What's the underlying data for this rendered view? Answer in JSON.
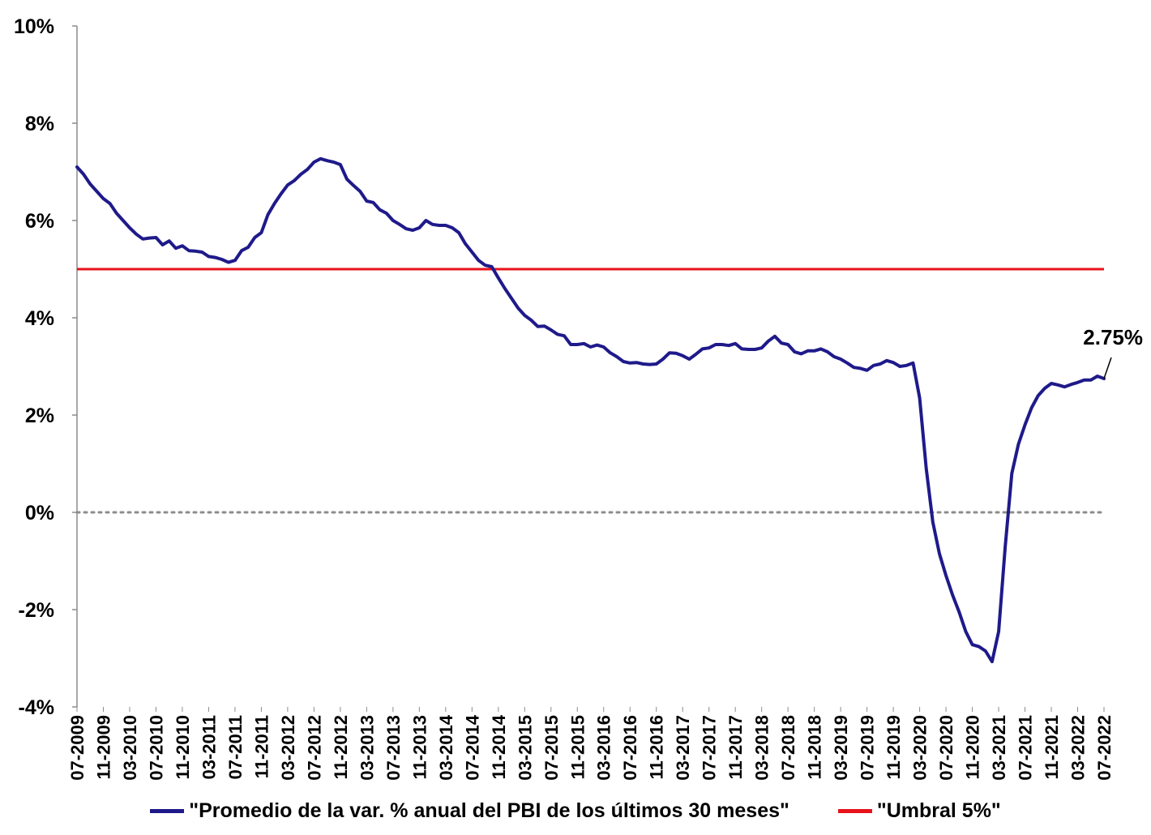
{
  "chart_data": {
    "type": "line",
    "ylim": [
      -4,
      10
    ],
    "yticks": [
      "10%",
      "8%",
      "6%",
      "4%",
      "2%",
      "0%",
      "-2%",
      "-4%"
    ],
    "ytick_values": [
      10,
      8,
      6,
      4,
      2,
      0,
      -2,
      -4
    ],
    "xlabels": [
      "07-2009",
      "11-2009",
      "03-2010",
      "07-2010",
      "11-2010",
      "03-2011",
      "07-2011",
      "11-2011",
      "03-2012",
      "07-2012",
      "11-2012",
      "03-2013",
      "07-2013",
      "11-2013",
      "03-2014",
      "07-2014",
      "11-2014",
      "03-2015",
      "07-2015",
      "11-2015",
      "03-2016",
      "07-2016",
      "11-2016",
      "03-2017",
      "07-2017",
      "11-2017",
      "03-2018",
      "07-2018",
      "11-2018",
      "03-2019",
      "07-2019",
      "11-2019",
      "03-2020",
      "07-2020",
      "11-2020",
      "03-2021",
      "07-2021",
      "11-2021",
      "03-2022",
      "07-2022"
    ],
    "series": [
      {
        "name": "\"Promedio de la var. % anual del PBI de los últimos 30 meses\"",
        "color": "#1f1a8a",
        "values": [
          7.1,
          6.95,
          6.75,
          6.6,
          6.45,
          6.35,
          6.15,
          6.0,
          5.85,
          5.72,
          5.62,
          5.64,
          5.65,
          5.5,
          5.58,
          5.43,
          5.48,
          5.38,
          5.37,
          5.35,
          5.26,
          5.24,
          5.2,
          5.14,
          5.18,
          5.38,
          5.45,
          5.65,
          5.75,
          6.12,
          6.35,
          6.55,
          6.73,
          6.82,
          6.95,
          7.05,
          7.2,
          7.27,
          7.23,
          7.2,
          7.15,
          6.85,
          6.72,
          6.6,
          6.4,
          6.37,
          6.22,
          6.15,
          6.0,
          5.92,
          5.83,
          5.8,
          5.85,
          6.0,
          5.92,
          5.9,
          5.9,
          5.85,
          5.75,
          5.52,
          5.35,
          5.18,
          5.08,
          5.05,
          4.82,
          4.6,
          4.4,
          4.2,
          4.05,
          3.95,
          3.82,
          3.83,
          3.75,
          3.66,
          3.63,
          3.45,
          3.45,
          3.47,
          3.4,
          3.44,
          3.4,
          3.28,
          3.2,
          3.1,
          3.07,
          3.08,
          3.05,
          3.04,
          3.05,
          3.15,
          3.28,
          3.27,
          3.22,
          3.15,
          3.25,
          3.36,
          3.38,
          3.45,
          3.45,
          3.43,
          3.47,
          3.36,
          3.35,
          3.35,
          3.38,
          3.52,
          3.62,
          3.48,
          3.45,
          3.3,
          3.26,
          3.32,
          3.32,
          3.36,
          3.3,
          3.2,
          3.15,
          3.07,
          2.98,
          2.96,
          2.92,
          3.02,
          3.05,
          3.12,
          3.08,
          3.0,
          3.02,
          3.07,
          2.35,
          0.9,
          -0.2,
          -0.85,
          -1.3,
          -1.7,
          -2.05,
          -2.45,
          -2.72,
          -2.76,
          -2.85,
          -3.07,
          -2.45,
          -0.7,
          0.8,
          1.4,
          1.8,
          2.15,
          2.4,
          2.55,
          2.65,
          2.62,
          2.58,
          2.63,
          2.67,
          2.72,
          2.72,
          2.8,
          2.75
        ]
      },
      {
        "name": "\"Umbral 5%\"",
        "color": "#e8121b",
        "values": [
          5,
          5
        ]
      }
    ],
    "zero_line": {
      "value": 0,
      "color": "#8c8c8c",
      "style": "dotted"
    },
    "annotation": {
      "text": "2.75%"
    },
    "legend_position": "bottom-center"
  }
}
